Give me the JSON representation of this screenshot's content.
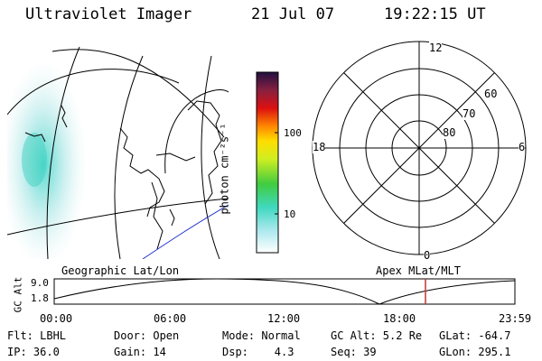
{
  "header": {
    "title": "Ultraviolet Imager",
    "date": "21 Jul 07",
    "time": "19:22:15 UT"
  },
  "colorbar": {
    "unit_label": "photon cm⁻²s⁻¹",
    "ticks": [
      "100",
      "10"
    ]
  },
  "polar_plot": {
    "mlt_labels": {
      "top": "12",
      "left": "18",
      "right": "6",
      "bottom": "0"
    },
    "lat_labels": [
      "60",
      "70",
      "80"
    ]
  },
  "timeline": {
    "left_title": "Geographic Lat/Lon",
    "right_title": "Apex MLat/MLT",
    "axis_title": "GC Alt",
    "y_ticks": [
      "9.0",
      "1.8"
    ],
    "x_ticks": [
      "00:00",
      "06:00",
      "12:00",
      "18:00",
      "23:59"
    ],
    "line_color": "#000000",
    "marker_color": "#c0392b"
  },
  "info": {
    "row1": [
      "Flt: LBHL",
      "Door: Open",
      "Mode: Normal",
      "GC Alt: 5.2 Re",
      "GLat: -64.7"
    ],
    "row2": [
      "IP: 36.0",
      "Gain: 14",
      "Dsp:    4.3",
      "Seq: 39",
      "GLon: 295.1"
    ]
  }
}
